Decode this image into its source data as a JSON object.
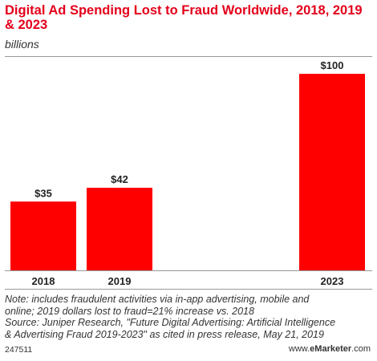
{
  "title": "Digital Ad Spending Lost to Fraud Worldwide, 2018, 2019 & 2023",
  "subtitle": "billions",
  "note_lines": [
    "Note: includes fraudulent activities via in-app advertising, mobile and",
    "online; 2019 dollars lost to fraud=21% increase vs. 2018",
    "Source: Juniper Research, \"Future Digital Advertising: Artificial Intelligence",
    "& Advertising Fraud 2019-2023\" as cited in press release, May 21, 2019"
  ],
  "footer": {
    "chart_id": "247511",
    "brand_prefix": "www.",
    "brand_name": "eMarketer",
    "brand_suffix": ".com"
  },
  "colors": {
    "bar": "#ff0000",
    "title": "#e4001b"
  },
  "chart_data": {
    "type": "bar",
    "categories": [
      "2018",
      "2019",
      "2023"
    ],
    "values": [
      35,
      42,
      100
    ],
    "value_labels": [
      "$35",
      "$42",
      "$100"
    ],
    "ylim": [
      0,
      100
    ],
    "grid": false,
    "title": "Digital Ad Spending Lost to Fraud Worldwide, 2018, 2019 & 2023",
    "subtitle": "billions"
  }
}
